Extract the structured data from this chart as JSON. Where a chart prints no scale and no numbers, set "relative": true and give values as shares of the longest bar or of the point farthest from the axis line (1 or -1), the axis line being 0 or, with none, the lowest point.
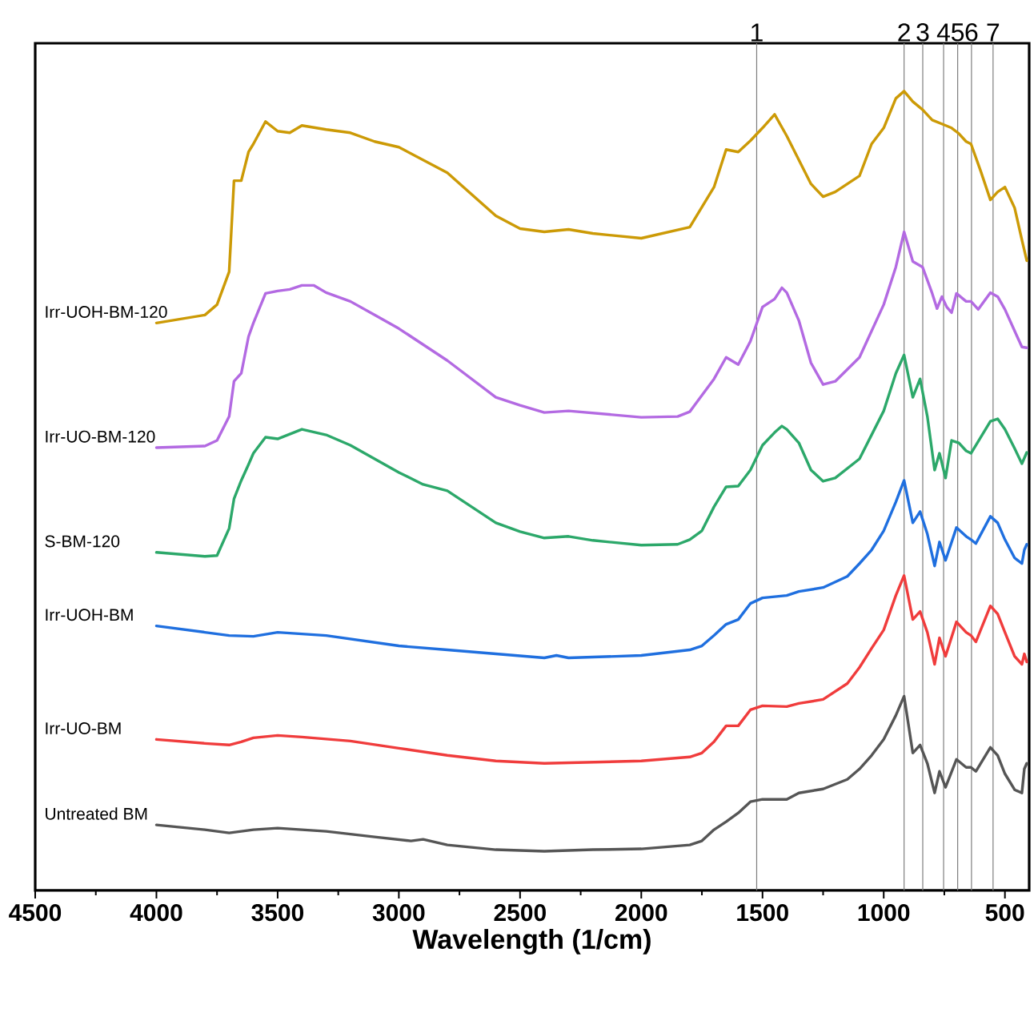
{
  "chart_data": {
    "type": "line",
    "relative": true,
    "xlabel": "Wavelength (1/cm)",
    "xlim": [
      4500,
      400
    ],
    "xticks": [
      4500,
      4000,
      3500,
      3000,
      2500,
      2000,
      1500,
      1000,
      500
    ],
    "tick_labels": "x",
    "series": [
      {
        "name": "Irr-UOH-BM-120",
        "color": "#cc9a06",
        "x": [
          4000,
          3800,
          3750,
          3700,
          3680,
          3650,
          3620,
          3600,
          3550,
          3500,
          3450,
          3400,
          3300,
          3200,
          3100,
          3000,
          2800,
          2600,
          2500,
          2400,
          2300,
          2200,
          2000,
          1800,
          1700,
          1650,
          1600,
          1550,
          1500,
          1450,
          1400,
          1350,
          1300,
          1250,
          1200,
          1100,
          1050,
          1000,
          950,
          916,
          880,
          840,
          800,
          760,
          720,
          690,
          660,
          640,
          600,
          560,
          530,
          500,
          460,
          430,
          410
        ],
        "values": [
          0.71,
          0.72,
          0.733,
          0.774,
          0.888,
          0.888,
          0.924,
          0.934,
          0.962,
          0.95,
          0.948,
          0.957,
          0.952,
          0.948,
          0.937,
          0.93,
          0.898,
          0.844,
          0.828,
          0.824,
          0.827,
          0.822,
          0.816,
          0.83,
          0.88,
          0.927,
          0.924,
          0.938,
          0.954,
          0.971,
          0.944,
          0.914,
          0.884,
          0.868,
          0.874,
          0.894,
          0.934,
          0.954,
          0.991,
          1.0,
          0.987,
          0.977,
          0.964,
          0.959,
          0.954,
          0.947,
          0.937,
          0.934,
          0.9,
          0.864,
          0.874,
          0.88,
          0.854,
          0.814,
          0.788
        ]
      },
      {
        "name": "Irr-UO-BM-120",
        "color": "#b36ae2",
        "x": [
          4000,
          3800,
          3750,
          3700,
          3680,
          3650,
          3620,
          3600,
          3550,
          3500,
          3450,
          3400,
          3350,
          3300,
          3200,
          3100,
          3000,
          2800,
          2600,
          2500,
          2400,
          2300,
          2000,
          1850,
          1800,
          1700,
          1650,
          1600,
          1550,
          1500,
          1450,
          1420,
          1400,
          1350,
          1300,
          1250,
          1200,
          1100,
          1000,
          950,
          916,
          880,
          840,
          800,
          780,
          760,
          740,
          720,
          700,
          660,
          640,
          610,
          560,
          530,
          500,
          460,
          430,
          410
        ],
        "values": [
          0.554,
          0.556,
          0.563,
          0.593,
          0.637,
          0.647,
          0.693,
          0.71,
          0.747,
          0.75,
          0.752,
          0.757,
          0.757,
          0.748,
          0.737,
          0.72,
          0.703,
          0.663,
          0.617,
          0.607,
          0.598,
          0.6,
          0.592,
          0.593,
          0.599,
          0.64,
          0.667,
          0.658,
          0.687,
          0.73,
          0.74,
          0.754,
          0.748,
          0.713,
          0.66,
          0.633,
          0.637,
          0.667,
          0.733,
          0.78,
          0.824,
          0.787,
          0.78,
          0.747,
          0.728,
          0.743,
          0.73,
          0.723,
          0.747,
          0.737,
          0.737,
          0.727,
          0.748,
          0.743,
          0.727,
          0.7,
          0.68,
          0.679
        ]
      },
      {
        "name": "S-BM-120",
        "color": "#2ca86a",
        "x": [
          4000,
          3800,
          3750,
          3700,
          3680,
          3650,
          3620,
          3600,
          3550,
          3500,
          3400,
          3300,
          3200,
          3100,
          3000,
          2900,
          2800,
          2700,
          2600,
          2500,
          2400,
          2300,
          2200,
          2000,
          1850,
          1800,
          1750,
          1700,
          1650,
          1600,
          1550,
          1500,
          1450,
          1420,
          1400,
          1350,
          1300,
          1250,
          1200,
          1100,
          1000,
          950,
          916,
          880,
          850,
          820,
          790,
          770,
          745,
          720,
          690,
          660,
          640,
          600,
          560,
          530,
          500,
          460,
          430,
          410
        ],
        "values": [
          0.423,
          0.418,
          0.419,
          0.453,
          0.49,
          0.513,
          0.533,
          0.547,
          0.567,
          0.565,
          0.577,
          0.57,
          0.557,
          0.54,
          0.523,
          0.508,
          0.5,
          0.48,
          0.46,
          0.449,
          0.441,
          0.443,
          0.438,
          0.432,
          0.433,
          0.439,
          0.45,
          0.48,
          0.505,
          0.506,
          0.526,
          0.557,
          0.573,
          0.581,
          0.577,
          0.56,
          0.526,
          0.512,
          0.516,
          0.54,
          0.6,
          0.647,
          0.67,
          0.617,
          0.64,
          0.593,
          0.526,
          0.547,
          0.516,
          0.563,
          0.56,
          0.55,
          0.547,
          0.567,
          0.587,
          0.59,
          0.577,
          0.553,
          0.534,
          0.548
        ]
      },
      {
        "name": "Irr-UOH-BM",
        "color": "#1f6fdf",
        "x": [
          4000,
          3800,
          3700,
          3600,
          3500,
          3300,
          3000,
          2800,
          2600,
          2400,
          2350,
          2300,
          2000,
          1800,
          1750,
          1700,
          1650,
          1600,
          1550,
          1500,
          1400,
          1350,
          1250,
          1150,
          1100,
          1050,
          1000,
          950,
          916,
          880,
          850,
          820,
          790,
          770,
          745,
          700,
          660,
          640,
          620,
          560,
          530,
          500,
          460,
          430,
          420,
          410
        ],
        "values": [
          0.331,
          0.323,
          0.319,
          0.318,
          0.323,
          0.319,
          0.306,
          0.301,
          0.296,
          0.291,
          0.294,
          0.291,
          0.294,
          0.301,
          0.306,
          0.319,
          0.333,
          0.339,
          0.359,
          0.366,
          0.369,
          0.374,
          0.379,
          0.393,
          0.409,
          0.426,
          0.45,
          0.486,
          0.513,
          0.46,
          0.474,
          0.446,
          0.406,
          0.436,
          0.413,
          0.454,
          0.443,
          0.439,
          0.434,
          0.468,
          0.46,
          0.439,
          0.416,
          0.409,
          0.426,
          0.433
        ]
      },
      {
        "name": "Irr-UO-BM",
        "color": "#f03c3c",
        "x": [
          4000,
          3800,
          3700,
          3650,
          3600,
          3500,
          3400,
          3200,
          3000,
          2800,
          2600,
          2400,
          2000,
          1800,
          1750,
          1700,
          1650,
          1600,
          1550,
          1500,
          1400,
          1350,
          1250,
          1150,
          1100,
          1050,
          1000,
          950,
          916,
          880,
          850,
          820,
          790,
          770,
          745,
          700,
          660,
          640,
          620,
          560,
          530,
          500,
          460,
          430,
          420,
          410
        ],
        "values": [
          0.189,
          0.184,
          0.182,
          0.186,
          0.191,
          0.194,
          0.192,
          0.187,
          0.178,
          0.169,
          0.162,
          0.159,
          0.162,
          0.167,
          0.172,
          0.186,
          0.206,
          0.206,
          0.226,
          0.231,
          0.23,
          0.234,
          0.239,
          0.259,
          0.279,
          0.303,
          0.326,
          0.369,
          0.394,
          0.339,
          0.349,
          0.323,
          0.283,
          0.316,
          0.293,
          0.336,
          0.323,
          0.319,
          0.311,
          0.356,
          0.346,
          0.323,
          0.293,
          0.283,
          0.296,
          0.286
        ]
      },
      {
        "name": "Untreated BM",
        "color": "#555555",
        "x": [
          4000,
          3800,
          3700,
          3600,
          3500,
          3300,
          3100,
          2950,
          2900,
          2800,
          2600,
          2400,
          2200,
          2000,
          1800,
          1750,
          1700,
          1650,
          1600,
          1550,
          1500,
          1400,
          1350,
          1250,
          1150,
          1100,
          1050,
          1000,
          950,
          916,
          880,
          850,
          820,
          790,
          770,
          745,
          700,
          660,
          640,
          620,
          560,
          530,
          500,
          460,
          430,
          420,
          410
        ],
        "values": [
          0.082,
          0.076,
          0.072,
          0.076,
          0.078,
          0.074,
          0.067,
          0.062,
          0.064,
          0.057,
          0.051,
          0.049,
          0.051,
          0.052,
          0.057,
          0.062,
          0.076,
          0.086,
          0.097,
          0.111,
          0.114,
          0.114,
          0.122,
          0.127,
          0.139,
          0.152,
          0.169,
          0.189,
          0.219,
          0.243,
          0.172,
          0.182,
          0.159,
          0.122,
          0.149,
          0.129,
          0.164,
          0.154,
          0.154,
          0.149,
          0.179,
          0.169,
          0.146,
          0.126,
          0.122,
          0.152,
          0.159
        ]
      }
    ],
    "ref_lines": [
      {
        "axis": "x",
        "value": 1524,
        "color": "#7f7f7f"
      },
      {
        "axis": "x",
        "value": 916,
        "color": "#7f7f7f"
      },
      {
        "axis": "x",
        "value": 839,
        "color": "#7f7f7f"
      },
      {
        "axis": "x",
        "value": 753,
        "color": "#7f7f7f"
      },
      {
        "axis": "x",
        "value": 695,
        "color": "#7f7f7f"
      },
      {
        "axis": "x",
        "value": 638,
        "color": "#7f7f7f"
      },
      {
        "axis": "x",
        "value": 549,
        "color": "#7f7f7f"
      }
    ],
    "annotations": [
      "1",
      "2",
      "3",
      "4",
      "5",
      "6",
      "7"
    ]
  }
}
